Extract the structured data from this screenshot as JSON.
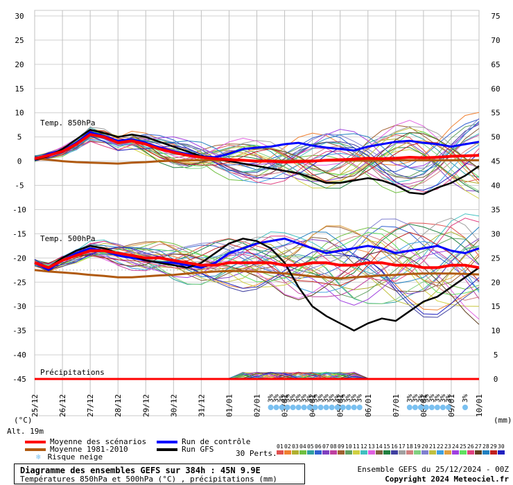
{
  "chart_data": {
    "type": "line",
    "title": "Diagramme des ensembles GEFS sur 384h : 45N 9.9E",
    "subtitle": "Températures 850hPa et 500hPa (°C) , précipitations (mm)",
    "left_unit": "(°C)",
    "right_unit": "(mm)",
    "alt_label": "Alt. 19m",
    "left_ticks": [
      "30",
      "25",
      "20",
      "15",
      "10",
      "5",
      "0",
      "-5",
      "-10",
      "-15",
      "-20",
      "-25",
      "-30",
      "-35",
      "-40",
      "-45"
    ],
    "right_ticks": [
      "75",
      "70",
      "65",
      "60",
      "55",
      "50",
      "45",
      "40",
      "35",
      "30",
      "25",
      "20",
      "15",
      "10",
      "5",
      "0"
    ],
    "x_ticks": [
      "25/12",
      "26/12",
      "27/12",
      "28/12",
      "29/12",
      "30/12",
      "31/12",
      "01/01",
      "02/01",
      "03/01",
      "04/01",
      "05/01",
      "06/01",
      "07/01",
      "08/01",
      "09/01",
      "10/01"
    ],
    "panel_labels": {
      "t850": "Temp. 850hPa",
      "t500": "Temp. 500hPa",
      "precip": "Précipitations"
    },
    "snow_label": "3%",
    "snow_days": [
      8.5,
      8.7,
      8.9,
      9.1,
      9.3,
      9.5,
      9.7,
      9.9,
      10.1,
      10.3,
      10.5,
      10.7,
      10.9,
      11.1,
      11.3,
      11.5,
      11.7,
      13.5,
      13.7,
      13.9,
      14.1,
      14.3,
      14.5,
      14.7,
      14.9,
      15.5
    ],
    "series": {
      "t850_mean": [
        0.5,
        1.2,
        2.0,
        3.5,
        5.5,
        5.0,
        3.8,
        4.2,
        3.5,
        2.5,
        1.8,
        1.2,
        0.8,
        0.5,
        0.3,
        0.2,
        0.0,
        0.0,
        -0.2,
        -0.1,
        0.0,
        0.2,
        0.3,
        0.4,
        0.6,
        0.5,
        0.6,
        0.8,
        0.7,
        0.8,
        1.0,
        1.1,
        1.2
      ],
      "t850_clim": [
        0.5,
        0.3,
        0.0,
        -0.2,
        -0.3,
        -0.4,
        -0.5,
        -0.3,
        -0.2,
        0.0,
        0.1,
        0.2,
        0.2,
        0.2,
        0.2,
        0.1,
        0.1,
        0.1,
        0.1,
        0.1,
        0.1,
        0.1,
        0.1,
        0.1,
        0.1,
        0.1,
        0.2,
        0.2,
        0.2,
        0.2,
        0.2,
        0.2,
        0.2
      ],
      "t850_control": [
        0.3,
        1.5,
        2.2,
        3.8,
        6.0,
        5.2,
        4.2,
        4.5,
        3.8,
        2.8,
        2.0,
        1.5,
        1.0,
        0.8,
        1.5,
        2.5,
        2.8,
        3.0,
        3.5,
        3.8,
        3.2,
        2.8,
        2.5,
        2.2,
        3.0,
        3.5,
        4.0,
        4.2,
        3.8,
        3.5,
        3.0,
        3.5,
        4.0
      ],
      "t850_gfs": [
        0.3,
        1.0,
        2.5,
        4.5,
        6.5,
        5.8,
        5.0,
        5.5,
        5.0,
        4.0,
        3.0,
        2.0,
        1.0,
        0.5,
        0.0,
        -0.5,
        -1.0,
        -1.5,
        -2.0,
        -2.5,
        -3.5,
        -4.5,
        -4.5,
        -4.0,
        -3.5,
        -4.0,
        -5.0,
        -6.5,
        -6.8,
        -5.5,
        -4.5,
        -3.0,
        -1.0
      ],
      "t500_mean": [
        -21.0,
        -22.0,
        -20.5,
        -19.5,
        -18.5,
        -18.5,
        -19.0,
        -19.5,
        -20.0,
        -20.0,
        -20.5,
        -21.0,
        -21.5,
        -21.5,
        -21.0,
        -21.0,
        -21.0,
        -21.0,
        -21.5,
        -21.5,
        -21.0,
        -21.0,
        -21.5,
        -21.5,
        -21.0,
        -21.0,
        -21.5,
        -21.5,
        -22.0,
        -22.0,
        -21.5,
        -21.5,
        -22.0
      ],
      "t500_clim": [
        -22.5,
        -22.8,
        -23.0,
        -23.2,
        -23.5,
        -23.7,
        -24.0,
        -24.0,
        -23.8,
        -23.6,
        -23.5,
        -23.2,
        -23.0,
        -22.8,
        -22.7,
        -22.7,
        -22.8,
        -23.0,
        -23.2,
        -23.5,
        -23.8,
        -24.0,
        -24.2,
        -24.0,
        -23.8,
        -23.6,
        -23.5,
        -23.3,
        -23.2,
        -23.2,
        -23.2,
        -23.3,
        -23.4
      ],
      "t500_control": [
        -21.0,
        -22.5,
        -20.5,
        -19.0,
        -18.0,
        -18.5,
        -19.5,
        -20.0,
        -20.5,
        -21.0,
        -21.0,
        -21.5,
        -22.0,
        -21.0,
        -19.0,
        -18.0,
        -17.0,
        -16.5,
        -16.0,
        -17.0,
        -18.0,
        -19.0,
        -18.5,
        -18.0,
        -17.5,
        -18.0,
        -19.0,
        -18.5,
        -18.0,
        -17.5,
        -18.5,
        -19.0,
        -18.0
      ],
      "t500_gfs": [
        -21.0,
        -22.0,
        -20.0,
        -18.5,
        -17.5,
        -18.0,
        -19.0,
        -19.5,
        -20.5,
        -21.0,
        -21.5,
        -22.0,
        -21.0,
        -19.0,
        -17.0,
        -16.0,
        -16.5,
        -18.0,
        -21.0,
        -26.0,
        -30.0,
        -32.0,
        -33.5,
        -35.0,
        -33.5,
        -32.5,
        -33.0,
        -31.0,
        -29.0,
        -28.0,
        -26.0,
        -24.0,
        -22.0
      ]
    }
  },
  "legend": {
    "mean_label": "Moyenne des scénarios",
    "clim_label": "Moyenne 1981-2010",
    "snow_label": "Risque neige",
    "control_label": "Run de contrôle",
    "gfs_label": "Run GFS",
    "perts_label": "30 Perts.",
    "pert_numbers": [
      "01",
      "02",
      "03",
      "04",
      "05",
      "06",
      "07",
      "08",
      "09",
      "10",
      "11",
      "12",
      "13",
      "14",
      "15",
      "16",
      "17",
      "18",
      "19",
      "20",
      "21",
      "22",
      "23",
      "24",
      "25",
      "26",
      "27",
      "28",
      "29",
      "30"
    ],
    "pert_colors": [
      "#e05050",
      "#f08030",
      "#b0b030",
      "#70c040",
      "#30a0a0",
      "#3060d0",
      "#8040c0",
      "#c040a0",
      "#a06030",
      "#60a060",
      "#d0d040",
      "#40c0c0",
      "#e060e0",
      "#806040",
      "#208040",
      "#4040a0",
      "#a0a0a0",
      "#d08080",
      "#80d080",
      "#8080d0",
      "#c0c040",
      "#40a0e0",
      "#e0a040",
      "#a040e0",
      "#60e060",
      "#e04080",
      "#604020",
      "#2080c0",
      "#c02020",
      "#2020c0"
    ],
    "mean_color": "#ff0000",
    "clim_color": "#b05a10",
    "control_color": "#0000ff",
    "gfs_color": "#000000",
    "snow_color": "#7ac0f0"
  },
  "footer": {
    "ensemble_line": "Ensemble GEFS du 25/12/2024 - 00Z",
    "copyright": "Copyright 2024 Meteociel.fr"
  }
}
